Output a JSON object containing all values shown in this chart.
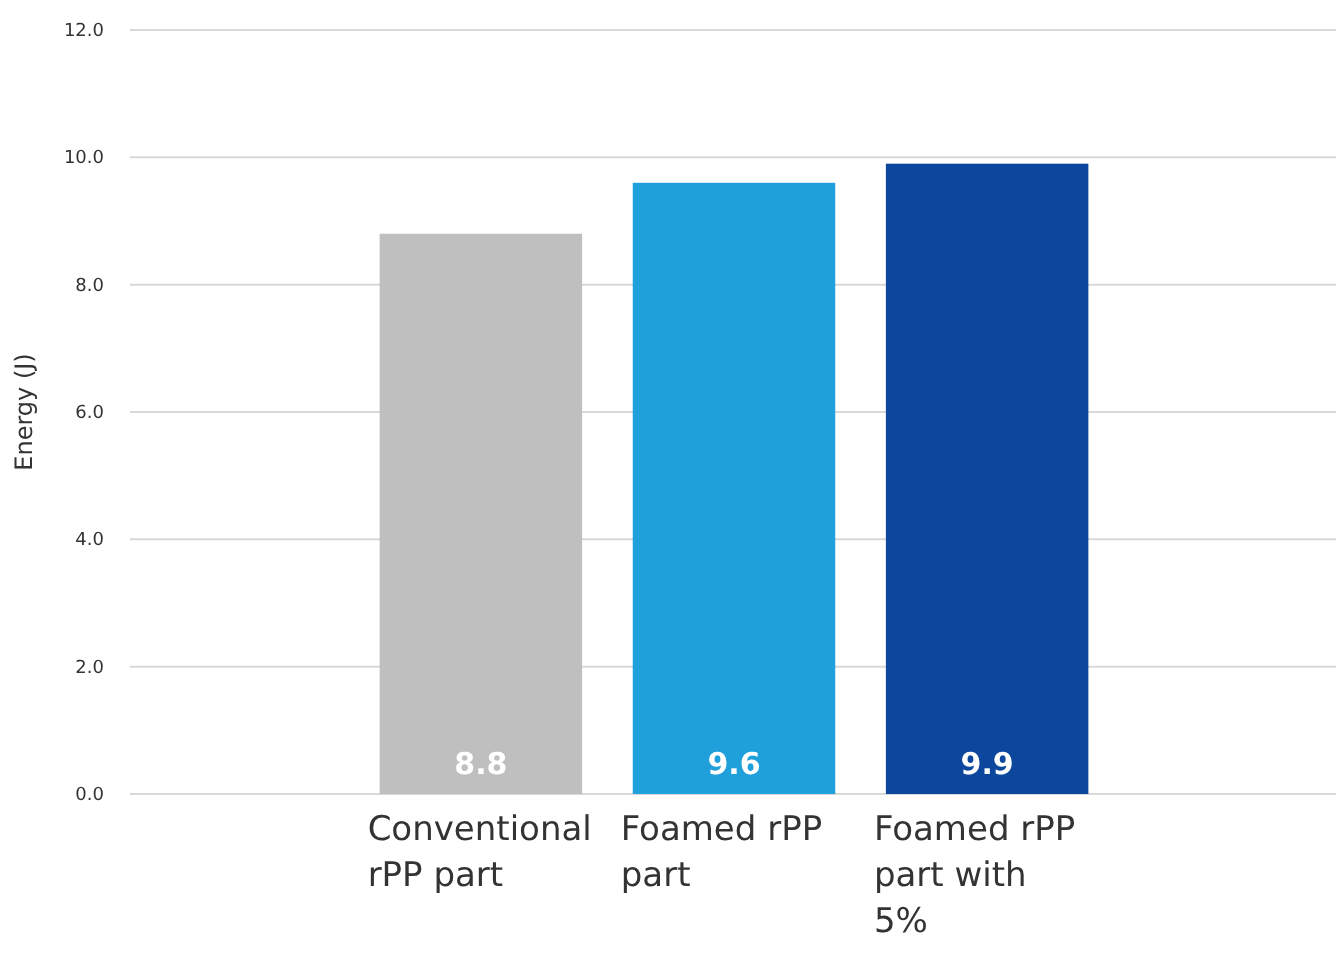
{
  "chart_data": {
    "type": "bar",
    "ylabel": "Energy  (J)",
    "categories": [
      "Conventional rPP part",
      "Foamed rPP part",
      "Foamed rPP part with 5%"
    ],
    "values": [
      8.8,
      9.6,
      9.9
    ],
    "colors": [
      "#bfbfbf",
      "#20a0da",
      "#0c479d"
    ],
    "ylim": [
      0,
      12
    ],
    "yticks": [
      {
        "value": 0,
        "label": "0.0"
      },
      {
        "value": 2,
        "label": "2.0"
      },
      {
        "value": 4,
        "label": "4.0"
      },
      {
        "value": 6,
        "label": "6.0"
      },
      {
        "value": 8,
        "label": "8.0"
      },
      {
        "value": 10,
        "label": "10.0"
      },
      {
        "value": 12,
        "label": "12.0"
      }
    ],
    "grid": "y",
    "data_labels": true
  }
}
